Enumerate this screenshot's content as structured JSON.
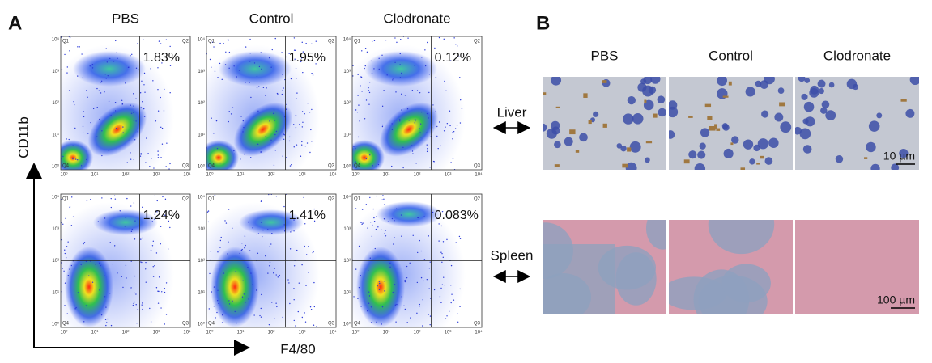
{
  "panel_a": {
    "label": "A",
    "columns": [
      "PBS",
      "Control",
      "Clodronate"
    ],
    "y_axis_label": "CD11b",
    "x_axis_label": "F4/80",
    "tick_labels": [
      "10⁰",
      "10¹",
      "10²",
      "10³",
      "10⁴"
    ],
    "quadrant_labels": [
      "Q1",
      "Q2",
      "Q3",
      "Q4"
    ],
    "rows": [
      [
        "1.83%",
        "1.95%",
        "0.12%"
      ],
      [
        "1.24%",
        "1.41%",
        "0.083%"
      ]
    ]
  },
  "panel_b": {
    "label": "B",
    "columns": [
      "PBS",
      "Control",
      "Clodronate"
    ],
    "rows": [
      {
        "label": "Liver",
        "scale_bar": "10 µm"
      },
      {
        "label": "Spleen",
        "scale_bar": "100 µm"
      }
    ]
  }
}
